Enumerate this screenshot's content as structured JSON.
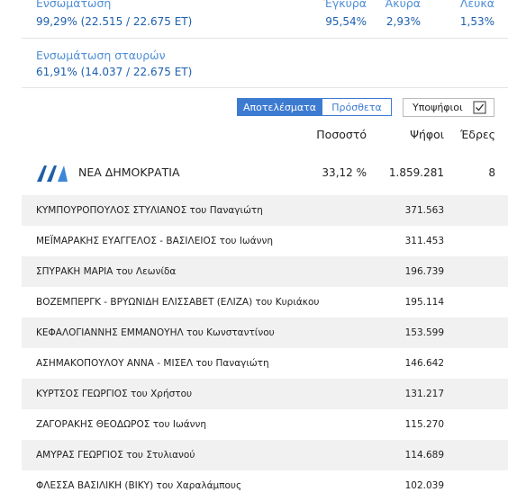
{
  "summary": {
    "integration": {
      "label": "Ενσωμάτωση",
      "value": "99,29% (22.515 / 22.675 ΕΤ)"
    },
    "valid": {
      "label": "Έγκυρα",
      "value": "95,54%"
    },
    "invalid": {
      "label": "Άκυρα",
      "value": "2,93%"
    },
    "blank": {
      "label": "Λευκά",
      "value": "1,53%"
    }
  },
  "cross_integration": {
    "label": "Ενσωμάτωση σταυρών",
    "value": "61,91% (14.037 / 22.675 ΕΤ)"
  },
  "tabs": [
    "Αποτελέσματα",
    "Πρόσθετα"
  ],
  "candidates_toggle": "Υποψήφιοι",
  "columns": [
    "Ποσοστό",
    "Ψήφοι",
    "Έδρες"
  ],
  "party": {
    "name": "ΝΕΑ ΔΗΜΟΚΡΑΤΙΑ",
    "percent": "33,12 %",
    "votes": "1.859.281",
    "seats": "8"
  },
  "candidates": [
    {
      "name": "ΚΥΜΠΟΥΡΟΠΟΥΛΟΣ ΣΤΥΛΙΑΝΟΣ του Παναγιώτη",
      "votes": "371.563"
    },
    {
      "name": "ΜΕΪΜΑΡΑΚΗΣ ΕΥΑΓΓΕΛΟΣ - ΒΑΣΙΛΕΙΟΣ του Ιωάννη",
      "votes": "311.453"
    },
    {
      "name": "ΣΠΥΡΑΚΗ ΜΑΡΙΑ του Λεωνίδα",
      "votes": "196.739"
    },
    {
      "name": "ΒΟΖΕΜΠΕΡΓΚ - ΒΡΥΩΝΙΔΗ ΕΛΙΣΣΑΒΕΤ (ΕΛΙΖΑ) του Κυριάκου",
      "votes": "195.114"
    },
    {
      "name": "ΚΕΦΑΛΟΓΙΑΝΝΗΣ ΕΜΜΑΝΟΥΗΛ του Κωνσταντίνου",
      "votes": "153.599"
    },
    {
      "name": "ΑΣΗΜΑΚΟΠΟΥΛΟΥ ΑΝΝΑ - ΜΙΣΕΛ του Παναγιώτη",
      "votes": "146.642"
    },
    {
      "name": "ΚΥΡΤΣΟΣ ΓΕΩΡΓΙΟΣ του Χρήστου",
      "votes": "131.217"
    },
    {
      "name": "ΖΑΓΟΡΑΚΗΣ ΘΕΟΔΩΡΟΣ του Ιωάννη",
      "votes": "115.270"
    },
    {
      "name": "ΑΜΥΡΑΣ ΓΕΩΡΓΙΟΣ του Στυλιανού",
      "votes": "114.689"
    },
    {
      "name": "ΦΛΕΣΣΑ ΒΑΣΙΛΙΚΗ (ΒΙΚΥ) του Χαραλάμπους",
      "votes": "102.039"
    }
  ]
}
